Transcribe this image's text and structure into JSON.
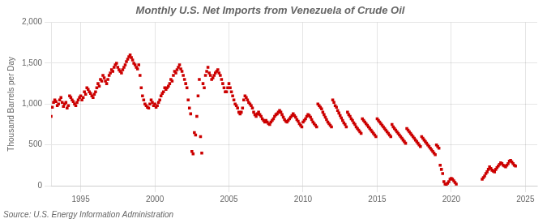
{
  "chart_data": {
    "type": "scatter",
    "title": "Monthly U.S. Net Imports from Venezuela of Crude Oil",
    "ylabel": "Thousand Barrels per Day",
    "source": "Source: U.S. Energy Information Administration",
    "color": "#CC0000",
    "marker": "square",
    "grid": true,
    "xlim": [
      1993.0,
      2025.8
    ],
    "ylim": [
      0,
      2000
    ],
    "xticks": [
      1995,
      2000,
      2005,
      2010,
      2015,
      2020,
      2025
    ],
    "yticks": [
      0,
      500,
      {
        "value": 1000,
        "label": "1,000"
      },
      {
        "value": 1500,
        "label": "1,500"
      },
      {
        "value": 2000,
        "label": "2,000"
      }
    ],
    "x": [
      1993.0,
      1993.083,
      1993.167,
      1993.25,
      1993.333,
      1993.417,
      1993.5,
      1993.583,
      1993.667,
      1993.75,
      1993.833,
      1993.917,
      1994.0,
      1994.083,
      1994.167,
      1994.25,
      1994.333,
      1994.417,
      1994.5,
      1994.583,
      1994.667,
      1994.75,
      1994.833,
      1994.917,
      1995.0,
      1995.083,
      1995.167,
      1995.25,
      1995.333,
      1995.417,
      1995.5,
      1995.583,
      1995.667,
      1995.75,
      1995.833,
      1995.917,
      1996.0,
      1996.083,
      1996.167,
      1996.25,
      1996.333,
      1996.417,
      1996.5,
      1996.583,
      1996.667,
      1996.75,
      1996.833,
      1996.917,
      1997.0,
      1997.083,
      1997.167,
      1997.25,
      1997.333,
      1997.417,
      1997.5,
      1997.583,
      1997.667,
      1997.75,
      1997.833,
      1997.917,
      1998.0,
      1998.083,
      1998.167,
      1998.25,
      1998.333,
      1998.417,
      1998.5,
      1998.583,
      1998.667,
      1998.75,
      1998.833,
      1998.917,
      1999.0,
      1999.083,
      1999.167,
      1999.25,
      1999.333,
      1999.417,
      1999.5,
      1999.583,
      1999.667,
      1999.75,
      1999.833,
      1999.917,
      2000.0,
      2000.083,
      2000.167,
      2000.25,
      2000.333,
      2000.417,
      2000.5,
      2000.583,
      2000.667,
      2000.75,
      2000.833,
      2000.917,
      2001.0,
      2001.083,
      2001.167,
      2001.25,
      2001.333,
      2001.417,
      2001.5,
      2001.583,
      2001.667,
      2001.75,
      2001.833,
      2001.917,
      2002.0,
      2002.083,
      2002.167,
      2002.25,
      2002.333,
      2002.417,
      2002.5,
      2002.583,
      2002.667,
      2002.75,
      2002.833,
      2002.917,
      2003.0,
      2003.083,
      2003.167,
      2003.25,
      2003.333,
      2003.417,
      2003.5,
      2003.583,
      2003.667,
      2003.75,
      2003.833,
      2003.917,
      2004.0,
      2004.083,
      2004.167,
      2004.25,
      2004.333,
      2004.417,
      2004.5,
      2004.583,
      2004.667,
      2004.75,
      2004.833,
      2004.917,
      2005.0,
      2005.083,
      2005.167,
      2005.25,
      2005.333,
      2005.417,
      2005.5,
      2005.583,
      2005.667,
      2005.75,
      2005.833,
      2005.917,
      2006.0,
      2006.083,
      2006.167,
      2006.25,
      2006.333,
      2006.417,
      2006.5,
      2006.583,
      2006.667,
      2006.75,
      2006.833,
      2006.917,
      2007.0,
      2007.083,
      2007.167,
      2007.25,
      2007.333,
      2007.417,
      2007.5,
      2007.583,
      2007.667,
      2007.75,
      2007.833,
      2007.917,
      2008.0,
      2008.083,
      2008.167,
      2008.25,
      2008.333,
      2008.417,
      2008.5,
      2008.583,
      2008.667,
      2008.75,
      2008.833,
      2008.917,
      2009.0,
      2009.083,
      2009.167,
      2009.25,
      2009.333,
      2009.417,
      2009.5,
      2009.583,
      2009.667,
      2009.75,
      2009.833,
      2009.917,
      2010.0,
      2010.083,
      2010.167,
      2010.25,
      2010.333,
      2010.417,
      2010.5,
      2010.583,
      2010.667,
      2010.75,
      2010.833,
      2010.917,
      2011.0,
      2011.083,
      2011.167,
      2011.25,
      2011.333,
      2011.417,
      2011.5,
      2011.583,
      2011.667,
      2011.75,
      2011.833,
      2011.917,
      2012.0,
      2012.083,
      2012.167,
      2012.25,
      2012.333,
      2012.417,
      2012.5,
      2012.583,
      2012.667,
      2012.75,
      2012.833,
      2012.917,
      2013.0,
      2013.083,
      2013.167,
      2013.25,
      2013.333,
      2013.417,
      2013.5,
      2013.583,
      2013.667,
      2013.75,
      2013.833,
      2013.917,
      2014.0,
      2014.083,
      2014.167,
      2014.25,
      2014.333,
      2014.417,
      2014.5,
      2014.583,
      2014.667,
      2014.75,
      2014.833,
      2014.917,
      2015.0,
      2015.083,
      2015.167,
      2015.25,
      2015.333,
      2015.417,
      2015.5,
      2015.583,
      2015.667,
      2015.75,
      2015.833,
      2015.917,
      2016.0,
      2016.083,
      2016.167,
      2016.25,
      2016.333,
      2016.417,
      2016.5,
      2016.583,
      2016.667,
      2016.75,
      2016.833,
      2016.917,
      2017.0,
      2017.083,
      2017.167,
      2017.25,
      2017.333,
      2017.417,
      2017.5,
      2017.583,
      2017.667,
      2017.75,
      2017.833,
      2017.917,
      2018.0,
      2018.083,
      2018.167,
      2018.25,
      2018.333,
      2018.417,
      2018.5,
      2018.583,
      2018.667,
      2018.75,
      2018.833,
      2018.917,
      2019.0,
      2019.083,
      2019.167,
      2019.25,
      2019.333,
      2019.417,
      2019.5,
      2019.583,
      2019.667,
      2019.75,
      2019.833,
      2019.917,
      2020.0,
      2020.083,
      2020.167,
      2020.25,
      2020.333,
      2022.083,
      2022.167,
      2022.25,
      2022.333,
      2022.417,
      2022.5,
      2022.583,
      2022.667,
      2022.75,
      2022.833,
      2022.917,
      2023.0,
      2023.083,
      2023.167,
      2023.25,
      2023.333,
      2023.417,
      2023.5,
      2023.583,
      2023.667,
      2023.75,
      2023.833,
      2023.917,
      2024.0,
      2024.083,
      2024.167,
      2024.25,
      2024.333
    ],
    "values": [
      850,
      960,
      1020,
      1050,
      1030,
      980,
      1000,
      1050,
      1080,
      1020,
      970,
      1000,
      1020,
      950,
      980,
      1100,
      1080,
      1050,
      1030,
      1000,
      980,
      1020,
      1050,
      1080,
      1100,
      1050,
      1080,
      1150,
      1120,
      1200,
      1180,
      1150,
      1130,
      1100,
      1080,
      1120,
      1150,
      1200,
      1250,
      1220,
      1300,
      1280,
      1350,
      1320,
      1280,
      1250,
      1300,
      1350,
      1380,
      1420,
      1400,
      1450,
      1480,
      1500,
      1450,
      1420,
      1400,
      1380,
      1420,
      1450,
      1480,
      1520,
      1550,
      1580,
      1600,
      1570,
      1540,
      1500,
      1480,
      1450,
      1430,
      1480,
      1350,
      1200,
      1100,
      1050,
      1000,
      980,
      960,
      950,
      1000,
      1050,
      1020,
      980,
      1000,
      960,
      980,
      1020,
      1050,
      1100,
      1130,
      1150,
      1200,
      1180,
      1200,
      1220,
      1250,
      1300,
      1280,
      1350,
      1400,
      1380,
      1420,
      1450,
      1480,
      1430,
      1400,
      1350,
      1300,
      1250,
      1200,
      1050,
      950,
      880,
      420,
      390,
      650,
      620,
      850,
      1100,
      1300,
      600,
      400,
      1250,
      1200,
      1350,
      1400,
      1450,
      1380,
      1350,
      1300,
      1320,
      1350,
      1380,
      1400,
      1420,
      1380,
      1350,
      1300,
      1250,
      1200,
      1150,
      1150,
      1200,
      1250,
      1200,
      1150,
      1100,
      1050,
      1000,
      980,
      950,
      900,
      880,
      900,
      950,
      1050,
      1100,
      1080,
      1050,
      1020,
      1000,
      980,
      950,
      900,
      870,
      850,
      880,
      900,
      870,
      850,
      820,
      800,
      780,
      800,
      780,
      760,
      750,
      780,
      800,
      820,
      850,
      870,
      880,
      900,
      920,
      900,
      870,
      840,
      810,
      790,
      780,
      800,
      820,
      840,
      860,
      880,
      860,
      840,
      810,
      790,
      760,
      740,
      720,
      780,
      800,
      820,
      850,
      870,
      860,
      840,
      810,
      780,
      760,
      740,
      720,
      1000,
      980,
      960,
      940,
      900,
      870,
      840,
      810,
      780,
      760,
      740,
      720,
      1050,
      1020,
      980,
      960,
      920,
      890,
      860,
      830,
      800,
      770,
      750,
      720,
      900,
      870,
      850,
      820,
      800,
      770,
      750,
      720,
      700,
      680,
      660,
      640,
      820,
      800,
      780,
      760,
      740,
      720,
      700,
      680,
      660,
      640,
      620,
      600,
      820,
      800,
      780,
      760,
      740,
      720,
      700,
      680,
      660,
      640,
      620,
      600,
      750,
      720,
      700,
      680,
      660,
      640,
      620,
      600,
      580,
      560,
      540,
      520,
      700,
      680,
      660,
      640,
      620,
      600,
      580,
      560,
      540,
      520,
      500,
      480,
      600,
      580,
      560,
      540,
      520,
      500,
      480,
      460,
      440,
      420,
      400,
      380,
      500,
      480,
      460,
      250,
      200,
      150,
      50,
      20,
      0,
      30,
      50,
      80,
      90,
      80,
      60,
      40,
      20,
      80,
      100,
      120,
      150,
      170,
      200,
      230,
      210,
      190,
      180,
      170,
      200,
      220,
      240,
      260,
      280,
      270,
      250,
      240,
      230,
      250,
      270,
      300,
      310,
      290,
      270,
      250,
      240
    ]
  }
}
